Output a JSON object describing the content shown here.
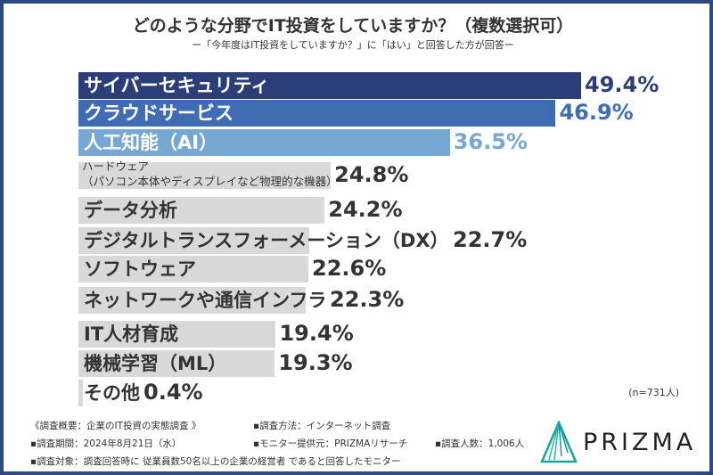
{
  "chart_data": {
    "type": "bar",
    "orientation": "horizontal",
    "title": "どのような分野でIT投資をしていますか？（複数選択可）",
    "subtitle": "ー「今年度はIT投資をしていますか？」に「はい」と回答した方が回答ー",
    "categories": [
      "サイバーセキュリティ",
      "クラウドサービス",
      "人工知能（AI）",
      "ハードウェア\n（パソコン本体やディスプレイなど物理的な機器）",
      "データ分析",
      "デジタルトランスフォーメーション（DX）",
      "ソフトウェア",
      "ネットワークや通信インフラ",
      "IT人材育成",
      "機械学習（ML）",
      "その他"
    ],
    "values": [
      49.4,
      46.9,
      36.5,
      24.8,
      24.2,
      22.7,
      22.6,
      22.3,
      19.4,
      19.3,
      0.4
    ],
    "value_labels": [
      "49.4%",
      "46.9%",
      "36.5%",
      "24.8%",
      "24.2%",
      "22.7%",
      "22.6%",
      "22.3%",
      "19.4%",
      "19.3%",
      "0.4%"
    ],
    "bar_colors": [
      "#2b3e78",
      "#3f6cb3",
      "#78a7d3",
      "#d9d9d9",
      "#d9d9d9",
      "#d9d9d9",
      "#d9d9d9",
      "#d9d9d9",
      "#d9d9d9",
      "#d9d9d9",
      "#d9d9d9"
    ],
    "value_colors": [
      "#2b3e78",
      "#3f6cb3",
      "#78a7d3",
      "#333333",
      "#333333",
      "#333333",
      "#333333",
      "#333333",
      "#333333",
      "#333333",
      "#333333"
    ],
    "unit": "%",
    "xlim": [
      0,
      49.4
    ],
    "grid": false,
    "note": "(n=731人)"
  },
  "footer": {
    "overview": "《調査概要：企業のIT投資の実態調査 》",
    "period": "▪調査期間：2024年8月21日（水）",
    "target": "▪調査対象：調査回答時に 従業員数50名以上の企業の経営者 であると回答したモニター",
    "method": "▪調査方法：インターネット調査",
    "provider": "▪モニター提供元：PRIZMAリサーチ",
    "count": "▪調査人数：1,006人"
  },
  "brand": {
    "name": "PRIZMA",
    "color": "#1aa79a"
  }
}
